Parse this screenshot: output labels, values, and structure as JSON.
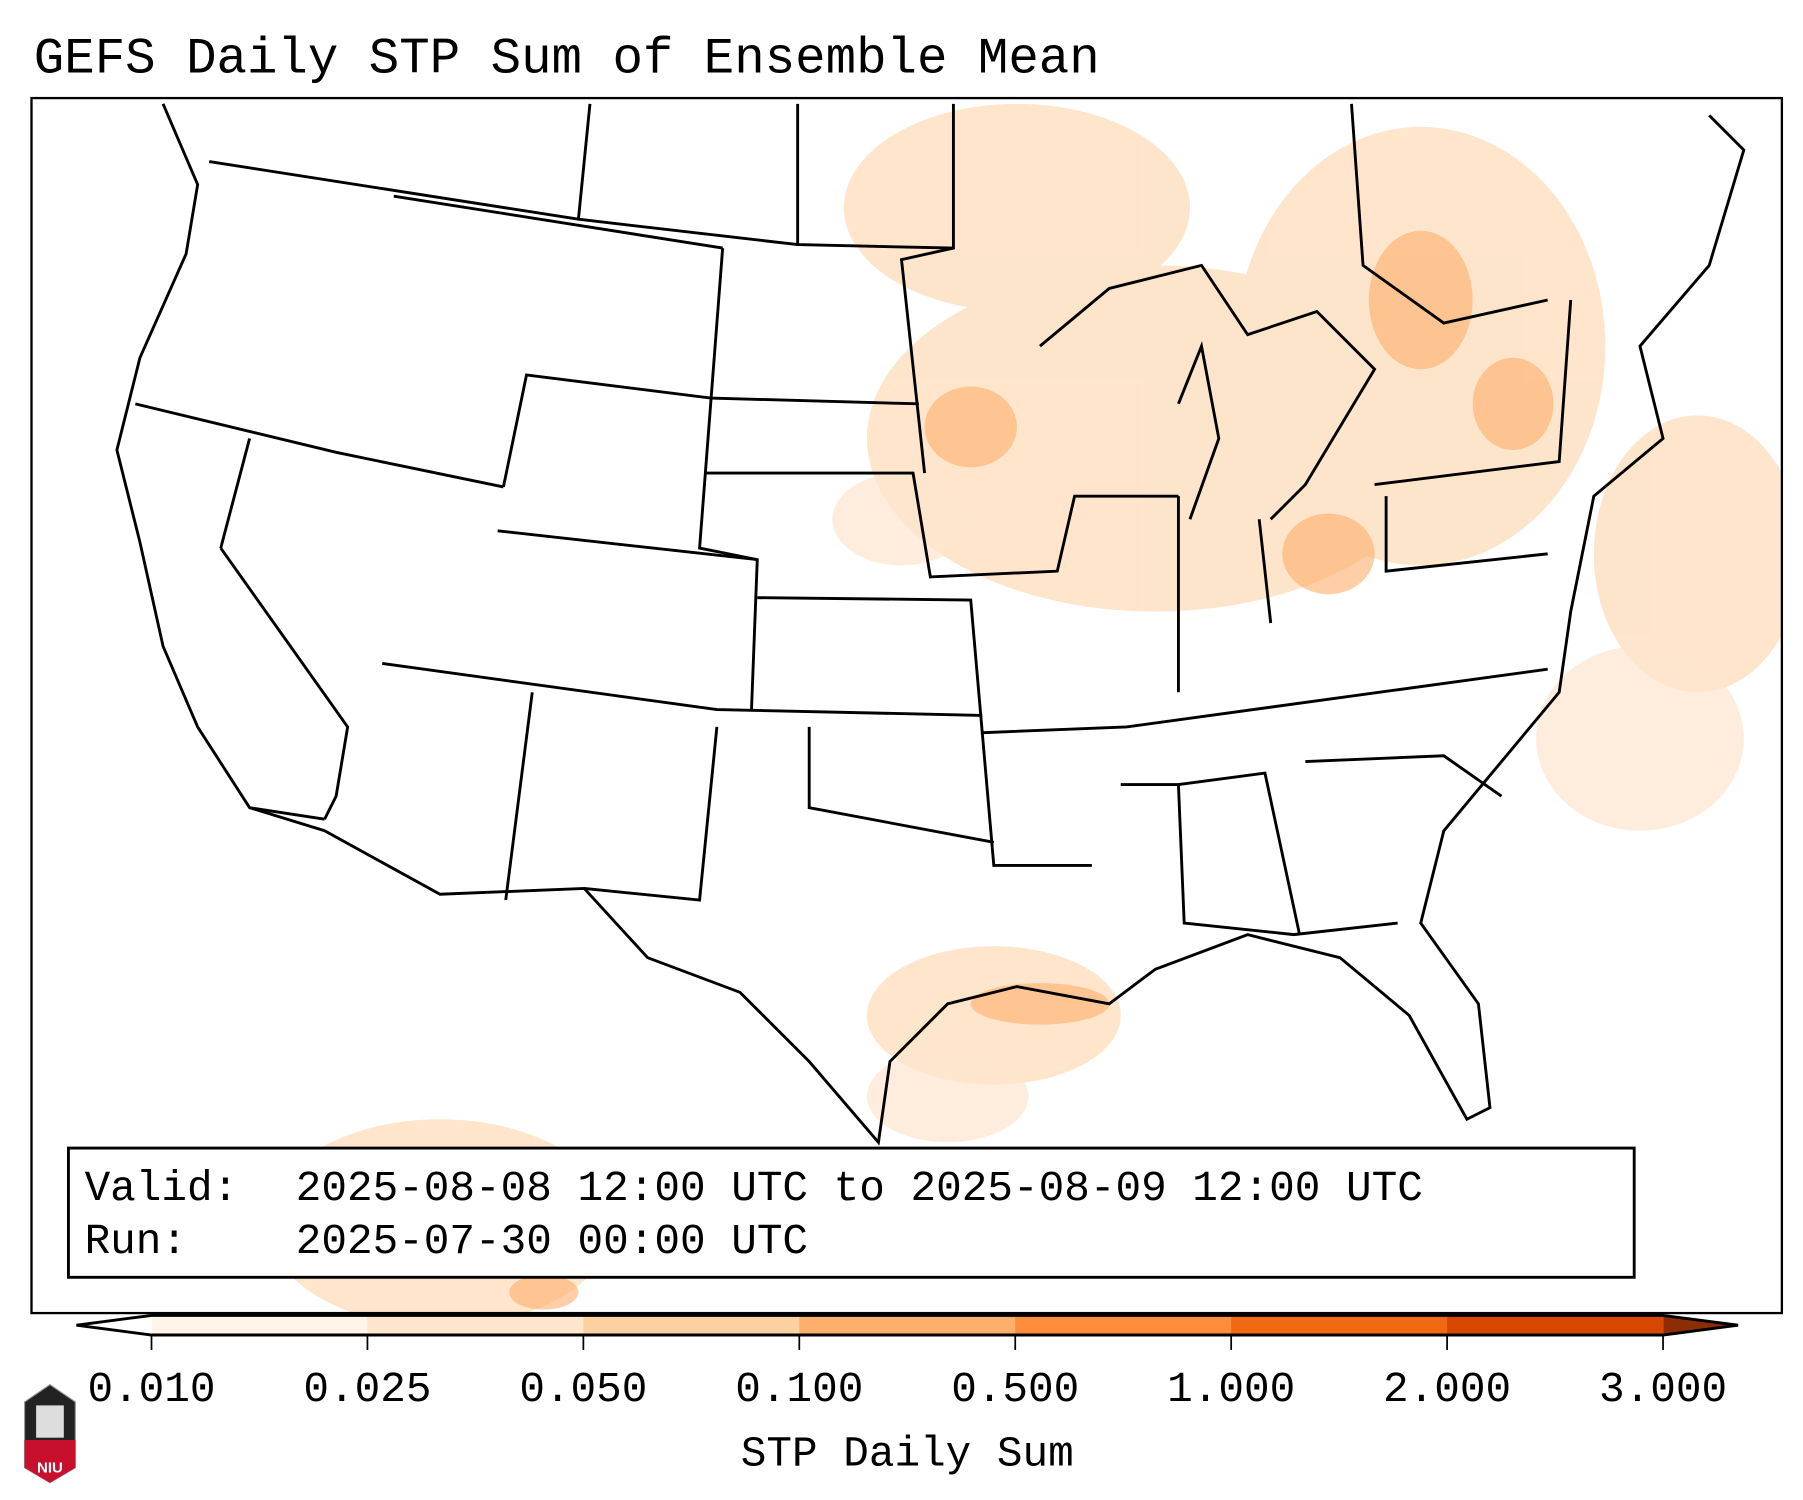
{
  "title": "GEFS Daily STP Sum of Ensemble Mean",
  "info_box": {
    "valid_label": "Valid:",
    "valid_value": "2025-08-08 12:00 UTC to 2025-08-09 12:00 UTC",
    "run_label": "Run:",
    "run_value": "2025-07-30 00:00 UTC"
  },
  "colorbar": {
    "label": "STP Daily Sum",
    "ticks": [
      "0.010",
      "0.025",
      "0.050",
      "0.100",
      "0.500",
      "1.000",
      "2.000",
      "3.000"
    ],
    "colors": [
      "#fff5eb",
      "#fee6ce",
      "#fdd0a2",
      "#fdae6b",
      "#fd8d3c",
      "#f16913",
      "#d94801"
    ],
    "under_color": "#ffffff",
    "over_color": "#8c2d04"
  },
  "logo": {
    "text": "NIU"
  }
}
